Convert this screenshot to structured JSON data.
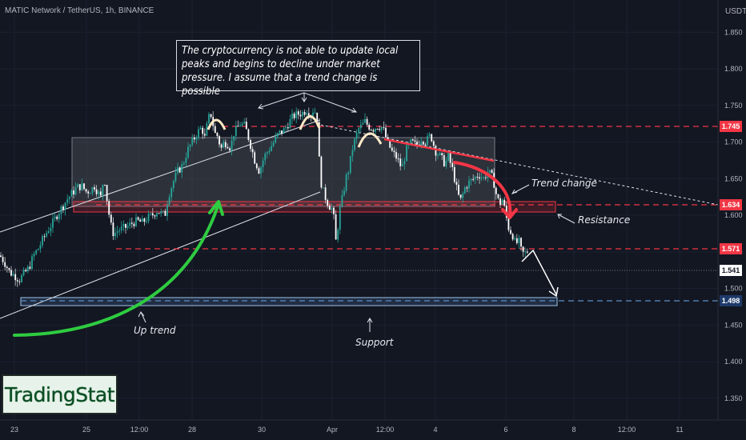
{
  "header": {
    "symbol": "MATIC Network / TetherUS, 1h, BINANCE",
    "unit": "USDT"
  },
  "logo": {
    "text": "TradingStat"
  },
  "annotation": {
    "text": "The cryptocurrency is not able to update local peaks and begins to decline under market pressure. I assume that a trend change is possible"
  },
  "labels": {
    "trend_change": "Trend change",
    "resistance": "Resistance",
    "up_trend": "Up trend",
    "support": "Support"
  },
  "price_tags": [
    {
      "value": "1.745",
      "color": "#f23645"
    },
    {
      "value": "1.634",
      "color": "#f23645"
    },
    {
      "value": "1.571",
      "color": "#f23645"
    },
    {
      "value": "1.541",
      "color": "#ffffff"
    },
    {
      "value": "1.498",
      "color": "#2962ff"
    }
  ],
  "colors": {
    "up": "#26a69a",
    "down": "#26a69a",
    "resistance": "#f23645",
    "support": "#5b8ec7",
    "trend_arrow": "#2ecc40",
    "decline_arrow": "#f23645"
  },
  "chart_data": {
    "type": "candlestick",
    "title": "MATIC Network / TetherUS, 1h, BINANCE",
    "ylabel": "USDT",
    "ylim": [
      1.33,
      1.88
    ],
    "y_ticks": [
      "1.850",
      "1.800",
      "1.750",
      "1.700",
      "1.650",
      "1.600",
      "1.550",
      "1.500",
      "1.450",
      "1.400",
      "1.350"
    ],
    "x_ticks": [
      "23",
      "25",
      "12:00",
      "28",
      "30",
      "Apr",
      "12:00",
      "4",
      "6",
      "8",
      "12:00",
      "11"
    ],
    "levels": [
      {
        "name": "resistance-high",
        "value": 1.745
      },
      {
        "name": "resistance",
        "value": 1.634
      },
      {
        "name": "mid-level",
        "value": 1.571
      },
      {
        "name": "last-price",
        "value": 1.541
      },
      {
        "name": "support",
        "value": 1.498
      }
    ],
    "close_path": [
      [
        0,
        1.545
      ],
      [
        6,
        1.535
      ],
      [
        12,
        1.522
      ],
      [
        18,
        1.518
      ],
      [
        24,
        1.512
      ],
      [
        30,
        1.52
      ],
      [
        36,
        1.528
      ],
      [
        42,
        1.545
      ],
      [
        48,
        1.555
      ],
      [
        54,
        1.568
      ],
      [
        60,
        1.58
      ],
      [
        66,
        1.59
      ],
      [
        72,
        1.602
      ],
      [
        78,
        1.612
      ],
      [
        84,
        1.622
      ],
      [
        90,
        1.63
      ],
      [
        96,
        1.638
      ],
      [
        102,
        1.64
      ],
      [
        108,
        1.632
      ],
      [
        114,
        1.635
      ],
      [
        118,
        1.64
      ],
      [
        122,
        1.632
      ],
      [
        126,
        1.624
      ],
      [
        130,
        1.656
      ],
      [
        134,
        1.618
      ],
      [
        138,
        1.588
      ],
      [
        142,
        1.574
      ],
      [
        148,
        1.58
      ],
      [
        154,
        1.582
      ],
      [
        160,
        1.585
      ],
      [
        166,
        1.59
      ],
      [
        172,
        1.592
      ],
      [
        178,
        1.59
      ],
      [
        184,
        1.596
      ],
      [
        190,
        1.6
      ],
      [
        196,
        1.606
      ],
      [
        202,
        1.602
      ],
      [
        206,
        1.6
      ],
      [
        210,
        1.625
      ],
      [
        216,
        1.645
      ],
      [
        222,
        1.66
      ],
      [
        228,
        1.668
      ],
      [
        234,
        1.688
      ],
      [
        240,
        1.7
      ],
      [
        246,
        1.712
      ],
      [
        252,
        1.72
      ],
      [
        256,
        1.705
      ],
      [
        260,
        1.732
      ],
      [
        264,
        1.738
      ],
      [
        268,
        1.712
      ],
      [
        272,
        1.708
      ],
      [
        276,
        1.69
      ],
      [
        280,
        1.7
      ],
      [
        284,
        1.698
      ],
      [
        288,
        1.692
      ],
      [
        292,
        1.712
      ],
      [
        296,
        1.718
      ],
      [
        300,
        1.725
      ],
      [
        306,
        1.722
      ],
      [
        312,
        1.7
      ],
      [
        318,
        1.676
      ],
      [
        324,
        1.66
      ],
      [
        330,
        1.68
      ],
      [
        336,
        1.69
      ],
      [
        342,
        1.7
      ],
      [
        348,
        1.712
      ],
      [
        354,
        1.715
      ],
      [
        360,
        1.725
      ],
      [
        366,
        1.735
      ],
      [
        372,
        1.738
      ],
      [
        378,
        1.74
      ],
      [
        384,
        1.745
      ],
      [
        388,
        1.738
      ],
      [
        392,
        1.745
      ],
      [
        396,
        1.736
      ],
      [
        400,
        1.65
      ],
      [
        404,
        1.632
      ],
      [
        408,
        1.62
      ],
      [
        412,
        1.612
      ],
      [
        416,
        1.608
      ],
      [
        420,
        1.56
      ],
      [
        424,
        1.605
      ],
      [
        428,
        1.625
      ],
      [
        432,
        1.65
      ],
      [
        436,
        1.664
      ],
      [
        440,
        1.69
      ],
      [
        444,
        1.705
      ],
      [
        448,
        1.718
      ],
      [
        452,
        1.722
      ],
      [
        456,
        1.728
      ],
      [
        460,
        1.722
      ],
      [
        466,
        1.718
      ],
      [
        472,
        1.722
      ],
      [
        478,
        1.72
      ],
      [
        484,
        1.7
      ],
      [
        490,
        1.686
      ],
      [
        496,
        1.678
      ],
      [
        502,
        1.664
      ],
      [
        508,
        1.69
      ],
      [
        514,
        1.7
      ],
      [
        520,
        1.695
      ],
      [
        526,
        1.705
      ],
      [
        532,
        1.7
      ],
      [
        538,
        1.71
      ],
      [
        544,
        1.688
      ],
      [
        550,
        1.68
      ],
      [
        556,
        1.67
      ],
      [
        560,
        1.68
      ],
      [
        566,
        1.66
      ],
      [
        572,
        1.628
      ],
      [
        576,
        1.62
      ],
      [
        580,
        1.636
      ],
      [
        586,
        1.645
      ],
      [
        592,
        1.65
      ],
      [
        598,
        1.656
      ],
      [
        604,
        1.65
      ],
      [
        610,
        1.66
      ],
      [
        616,
        1.65
      ],
      [
        620,
        1.628
      ],
      [
        624,
        1.615
      ],
      [
        628,
        1.622
      ],
      [
        632,
        1.6
      ],
      [
        636,
        1.58
      ],
      [
        640,
        1.575
      ],
      [
        644,
        1.56
      ],
      [
        648,
        1.565
      ],
      [
        652,
        1.548
      ],
      [
        656,
        1.548
      ],
      [
        660,
        1.552
      ]
    ]
  }
}
